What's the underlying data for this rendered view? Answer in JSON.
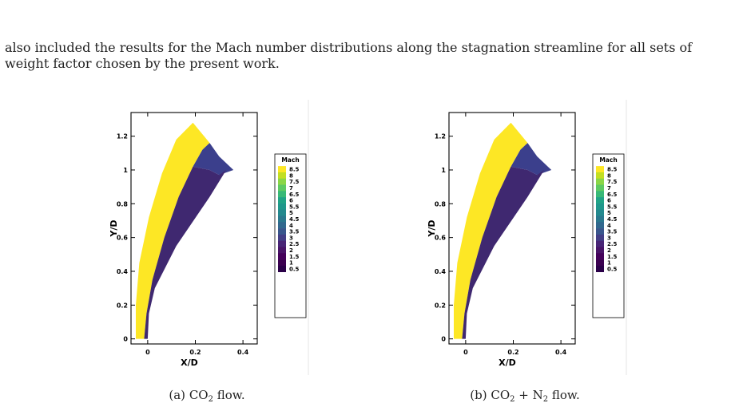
{
  "paragraph": "also included the results for the Mach number distributions along the stagnation streamline for all sets of weight factor chosen by the present work.",
  "colors": {
    "shock_layer_yellow": "#fde725",
    "body_dark": "#3f2870",
    "wake_blue": "#3b3f8c",
    "text": "#222222"
  },
  "figures": [
    {
      "id": "a",
      "caption_label": "(a)",
      "caption_species": [
        {
          "base": "CO",
          "sub": "2"
        }
      ],
      "caption_joiner": "",
      "caption_tail": " flow.",
      "chart_data": {
        "type": "contour",
        "xlabel": "X/D",
        "ylabel": "Y/D",
        "xticks": [
          0,
          0.2,
          0.4
        ],
        "xtick_labels": [
          "0",
          "0.2",
          "0.4"
        ],
        "yticks": [
          0,
          0.2,
          0.4,
          0.6,
          0.8,
          1,
          1.2
        ],
        "ytick_labels": [
          "0",
          "0.2",
          "0.4",
          "0.6",
          "0.8",
          "1",
          "1.2"
        ],
        "xlim": [
          -0.07,
          0.46
        ],
        "ylim": [
          -0.03,
          1.34
        ],
        "legend_title": "Mach",
        "legend_levels": [
          "8.5",
          "8",
          "7.5",
          "7",
          "6.5",
          "6",
          "5.5",
          "5",
          "4.5",
          "4",
          "3.5",
          "3",
          "2.5",
          "2",
          "1.5",
          "1",
          "0.5"
        ],
        "legend_colors": [
          "#fde725",
          "#c2df23",
          "#8bd646",
          "#5ec962",
          "#38b977",
          "#20a386",
          "#1f978b",
          "#23898e",
          "#2a788e",
          "#31688e",
          "#39568c",
          "#433e85",
          "#482576",
          "#481467",
          "#44015a",
          "#3b0050",
          "#2a0048"
        ]
      }
    },
    {
      "id": "b",
      "caption_label": "(b)",
      "caption_species": [
        {
          "base": "CO",
          "sub": "2"
        },
        {
          "base": "N",
          "sub": "2"
        }
      ],
      "caption_joiner": " + ",
      "caption_tail": " flow.",
      "chart_data": {
        "type": "contour",
        "xlabel": "X/D",
        "ylabel": "Y/D",
        "xticks": [
          0,
          0.2,
          0.4
        ],
        "xtick_labels": [
          "0",
          "0.2",
          "0.4"
        ],
        "yticks": [
          0,
          0.2,
          0.4,
          0.6,
          0.8,
          1,
          1.2
        ],
        "ytick_labels": [
          "0",
          "0.2",
          "0.4",
          "0.6",
          "0.8",
          "1",
          "1.2"
        ],
        "xlim": [
          -0.07,
          0.46
        ],
        "ylim": [
          -0.03,
          1.34
        ],
        "legend_title": "Mach",
        "legend_levels": [
          "8.5",
          "8",
          "7.5",
          "7",
          "6.5",
          "6",
          "5.5",
          "5",
          "4.5",
          "4",
          "3.5",
          "3",
          "2.5",
          "2",
          "1.5",
          "1",
          "0.5"
        ],
        "legend_colors": [
          "#fde725",
          "#c2df23",
          "#8bd646",
          "#5ec962",
          "#38b977",
          "#20a386",
          "#1f978b",
          "#23898e",
          "#2a788e",
          "#31688e",
          "#39568c",
          "#433e85",
          "#482576",
          "#481467",
          "#44015a",
          "#3b0050",
          "#2a0048"
        ]
      }
    }
  ]
}
